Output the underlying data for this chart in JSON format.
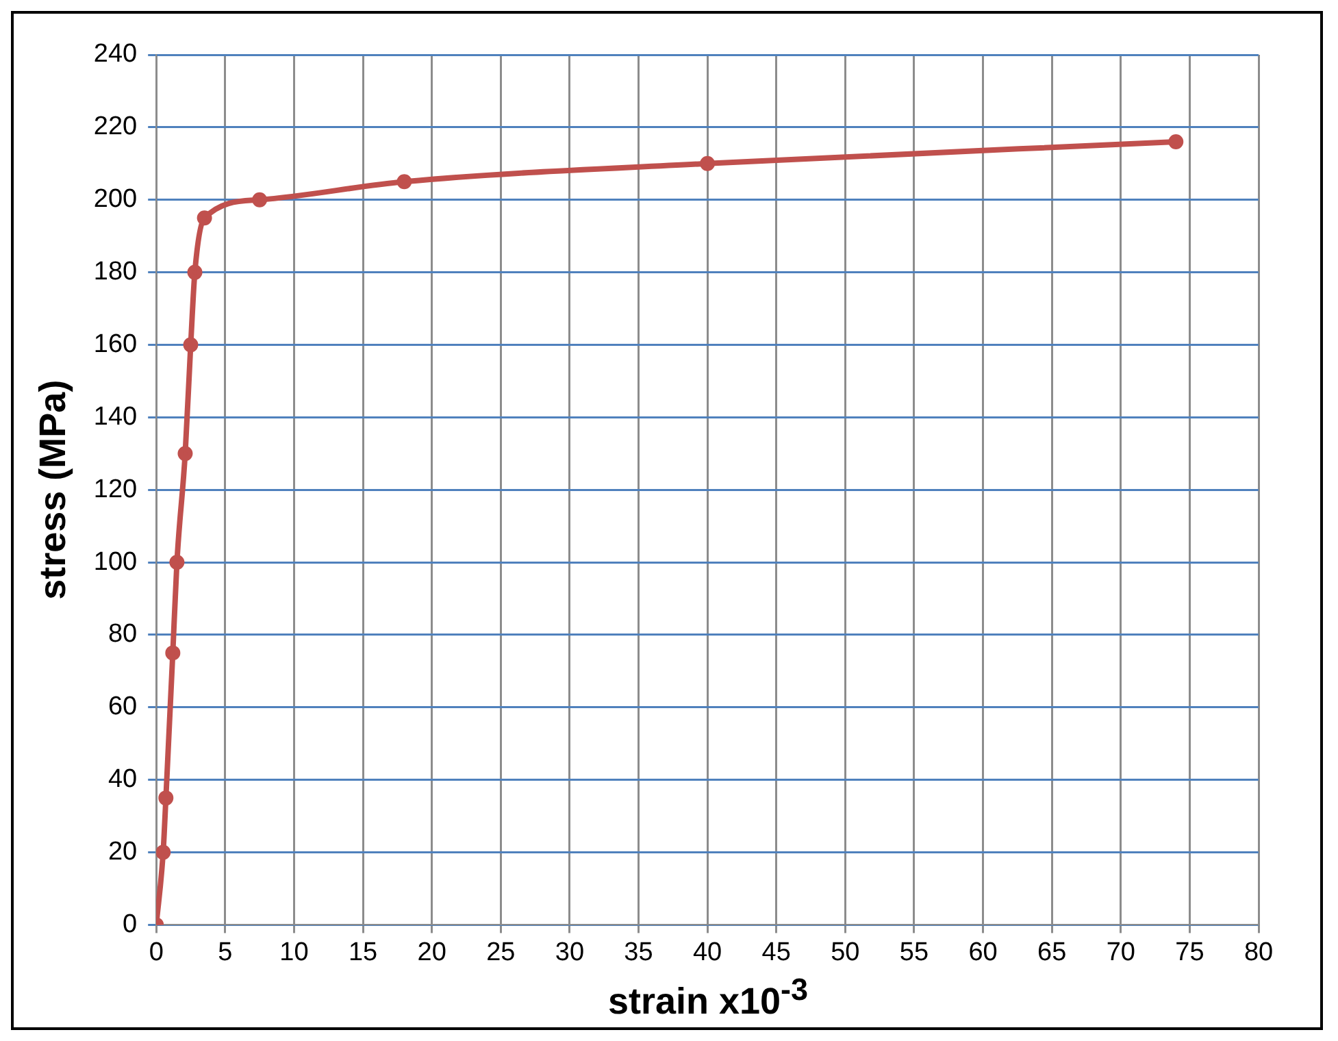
{
  "chart_data": {
    "type": "line",
    "xlabel": "strain x10$^{-3}$",
    "ylabel": "stress (MPa)",
    "x": [
      0,
      0.5,
      0.7,
      1.2,
      1.5,
      2.1,
      2.5,
      2.8,
      3.5,
      7.5,
      18,
      40,
      74
    ],
    "series": [
      {
        "color": "#c0504d",
        "values": [
          0,
          20,
          35,
          75,
          100,
          130,
          160,
          180,
          195,
          200,
          205,
          210,
          216
        ]
      }
    ],
    "xlim": [
      0,
      80
    ],
    "xticks": [
      0,
      5,
      10,
      15,
      20,
      25,
      30,
      35,
      40,
      45,
      50,
      55,
      60,
      65,
      70,
      75,
      80
    ],
    "ylim": [
      0,
      240
    ],
    "yticks": [
      0,
      20,
      40,
      60,
      80,
      100,
      120,
      140,
      160,
      180,
      200,
      220,
      240
    ],
    "grid": true,
    "legend": false,
    "marker": "circle",
    "line_style": "solid"
  }
}
